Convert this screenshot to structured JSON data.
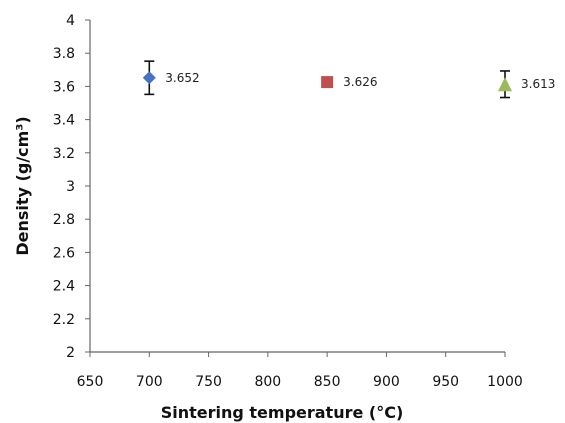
{
  "chart_data": {
    "type": "scatter",
    "xlabel": "Sintering temperature (°C)",
    "ylabel": "Density (g/cm³)",
    "xlim": [
      650,
      1000
    ],
    "ylim": [
      2,
      4
    ],
    "x_ticks": [
      650,
      700,
      750,
      800,
      850,
      900,
      950,
      1000
    ],
    "y_ticks": [
      2,
      2.2,
      2.4,
      2.6,
      2.8,
      3,
      3.2,
      3.4,
      3.6,
      3.8,
      4
    ],
    "x_tick_labels": [
      "650",
      "700",
      "750",
      "800",
      "850",
      "900",
      "950",
      "1000"
    ],
    "y_tick_labels": [
      "2",
      "2.2",
      "2.4",
      "2.6",
      "2.8",
      "3",
      "3.2",
      "3.4",
      "3.6",
      "3.8",
      "4"
    ],
    "grid": false,
    "legend": "none",
    "points": [
      {
        "x": 700,
        "y": 3.652,
        "label": "3.652",
        "marker": "diamond",
        "color": "#4472C4",
        "error": 0.1
      },
      {
        "x": 850,
        "y": 3.626,
        "label": "3.626",
        "marker": "square",
        "color": "#C0504D",
        "error": 0
      },
      {
        "x": 1000,
        "y": 3.613,
        "label": "3.613",
        "marker": "triangle",
        "color": "#9BBB59",
        "error": 0.08
      }
    ]
  }
}
